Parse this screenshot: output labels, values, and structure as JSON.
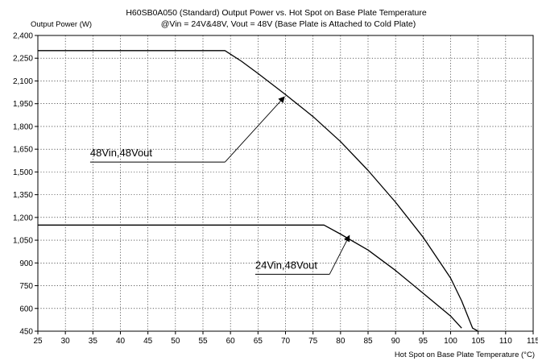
{
  "chart_data": {
    "type": "line",
    "title": "H60SB0A050 (Standard)  Output Power vs. Hot Spot on Base Plate Temperature",
    "subtitle": "@Vin = 24V&48V, Vout = 48V (Base Plate is Attached to Cold Plate)",
    "ylabel": "Output Power (W)",
    "xlabel": "Hot Spot on Base Plate Temperature (°C)",
    "xlim": [
      25,
      115
    ],
    "ylim": [
      450,
      2400
    ],
    "x_ticks": [
      "25",
      "30",
      "35",
      "40",
      "45",
      "50",
      "55",
      "60",
      "65",
      "70",
      "75",
      "80",
      "85",
      "90",
      "95",
      "100",
      "105",
      "110",
      "115"
    ],
    "y_ticks": [
      "450",
      "600",
      "750",
      "900",
      "1,050",
      "1,200",
      "1,350",
      "1,500",
      "1,650",
      "1,800",
      "1,950",
      "2,100",
      "2,250",
      "2,400"
    ],
    "grid": "dotted",
    "series": [
      {
        "name": "48Vin,48Vout",
        "color": "#000000",
        "points": [
          [
            25,
            2300
          ],
          [
            59,
            2300
          ],
          [
            62,
            2230
          ],
          [
            65,
            2150
          ],
          [
            70,
            2010
          ],
          [
            75,
            1865
          ],
          [
            80,
            1700
          ],
          [
            85,
            1510
          ],
          [
            90,
            1300
          ],
          [
            95,
            1070
          ],
          [
            100,
            800
          ],
          [
            102,
            650
          ],
          [
            104,
            470
          ],
          [
            105,
            450
          ]
        ]
      },
      {
        "name": "24Vin,48Vout",
        "color": "#000000",
        "points": [
          [
            25,
            1150
          ],
          [
            77,
            1150
          ],
          [
            80,
            1090
          ],
          [
            85,
            985
          ],
          [
            90,
            850
          ],
          [
            95,
            700
          ],
          [
            100,
            550
          ],
          [
            102,
            470
          ]
        ]
      }
    ],
    "annotations": [
      {
        "text": "48Vin,48Vout",
        "label_at": [
          34.5,
          1565
        ],
        "underline_x": [
          34.5,
          59
        ],
        "arrow_to": [
          69.8,
          1995
        ]
      },
      {
        "text": "24Vin,48Vout",
        "label_at": [
          64.5,
          825
        ],
        "underline_x": [
          64.5,
          78
        ],
        "arrow_to": [
          81.6,
          1080
        ]
      }
    ]
  }
}
